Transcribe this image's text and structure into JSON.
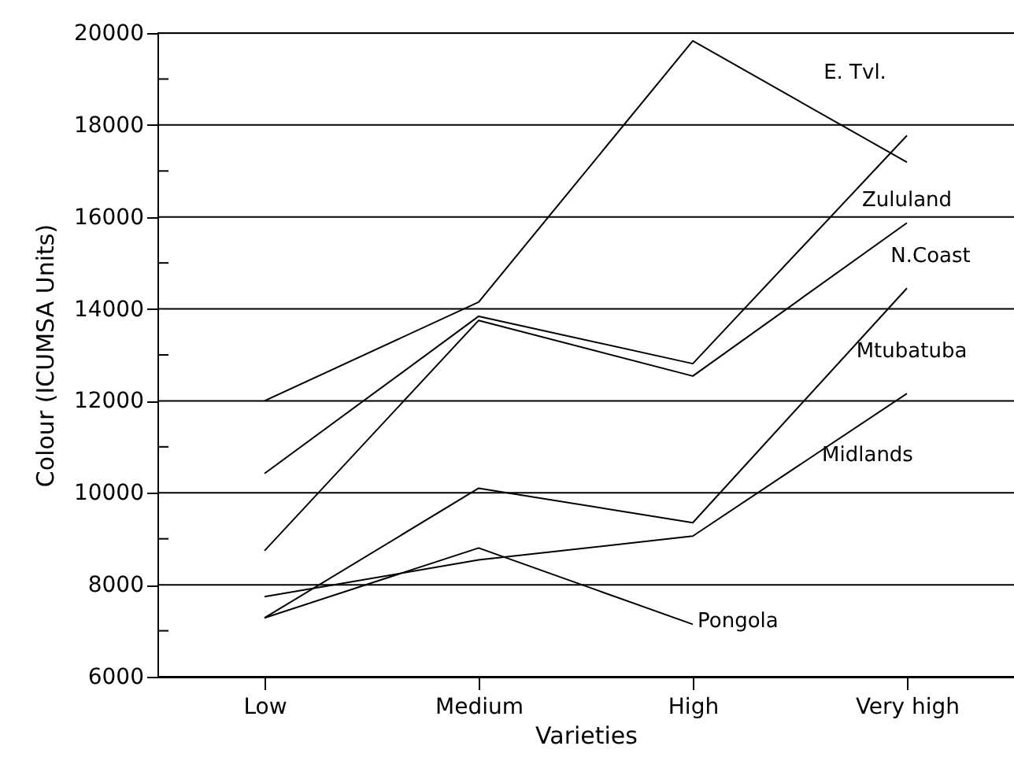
{
  "chart_data": {
    "type": "line",
    "xlabel": "Varieties",
    "ylabel": "Colour (ICUMSA Units)",
    "categories": [
      "Low",
      "Medium",
      "High",
      "Very high"
    ],
    "series": [
      {
        "name": "E. Tvl.",
        "color": "#000000",
        "values": [
          12000,
          14150,
          19830,
          17190
        ]
      },
      {
        "name": "Zululand",
        "color": "#000000",
        "values": [
          10420,
          13840,
          12810,
          17770
        ]
      },
      {
        "name": "N.Coast",
        "color": "#000000",
        "values": [
          8740,
          13750,
          12540,
          15870
        ]
      },
      {
        "name": "Mtubatuba",
        "color": "#000000",
        "values": [
          7280,
          10100,
          9350,
          14450
        ]
      },
      {
        "name": "Midlands",
        "color": "#000000",
        "values": [
          7740,
          8540,
          9060,
          12160
        ]
      },
      {
        "name": "Pongola",
        "color": "#000000",
        "values": [
          7280,
          8800,
          7140,
          null
        ]
      }
    ],
    "ylim": [
      6000,
      20000
    ],
    "yticks": [
      6000,
      {
        "value": 7000,
        "label": null
      },
      8000,
      {
        "value": 9000,
        "label": null
      },
      10000,
      {
        "value": 11000,
        "label": null
      },
      12000,
      {
        "value": 13000,
        "label": null
      },
      14000,
      {
        "value": 15000,
        "label": null
      },
      16000,
      {
        "value": 17000,
        "label": null
      },
      18000,
      {
        "value": 19000,
        "label": null
      },
      20000
    ],
    "grid": "y",
    "marker": "none",
    "line_style": "solid"
  }
}
